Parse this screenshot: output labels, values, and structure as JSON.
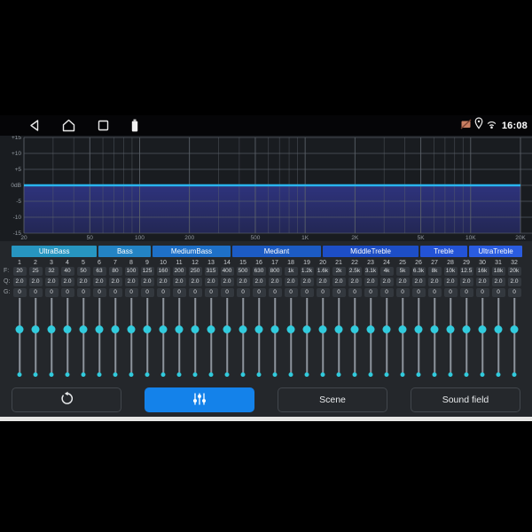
{
  "status_bar": {
    "time": "16:08"
  },
  "chart": {
    "type": "line",
    "title": "equalizer-frequency-response",
    "curve_db": 0,
    "x_scale": "log",
    "x_range_hz": [
      20,
      20000
    ],
    "y_range_db": [
      -15,
      15
    ],
    "y_ticks": [
      {
        "db": 15,
        "label": "+15"
      },
      {
        "db": 10,
        "label": "+10"
      },
      {
        "db": 5,
        "label": "+5"
      },
      {
        "db": 0,
        "label": "0dB"
      },
      {
        "db": -5,
        "label": "-5"
      },
      {
        "db": -10,
        "label": "-10"
      },
      {
        "db": -15,
        "label": "-15"
      }
    ],
    "x_ticks": [
      {
        "f": 20,
        "label": "20"
      },
      {
        "f": 50,
        "label": "50"
      },
      {
        "f": 100,
        "label": "100"
      },
      {
        "f": 200,
        "label": "200"
      },
      {
        "f": 500,
        "label": "500"
      },
      {
        "f": 1000,
        "label": "1K"
      },
      {
        "f": 2000,
        "label": "2K"
      },
      {
        "f": 5000,
        "label": "5K"
      },
      {
        "f": 10000,
        "label": "10K"
      },
      {
        "f": 20000,
        "label": "20K"
      }
    ],
    "minor_ticks": [
      30,
      40,
      60,
      70,
      80,
      90,
      300,
      400,
      600,
      700,
      800,
      900,
      3000,
      4000,
      6000,
      7000,
      8000,
      9000
    ],
    "line_color": "#29b4ee",
    "fill_top_color": "#2e337c",
    "fill_bottom_color": "#232754",
    "grid_color": "#5d636b",
    "label_color": "#939aa2"
  },
  "groups": [
    {
      "label": "UltraBass",
      "bands": 6,
      "color": "#2795c0"
    },
    {
      "label": "Bass",
      "bands": 4,
      "color": "#2383c4"
    },
    {
      "label": "MediumBass",
      "bands": 4,
      "color": "#1e70c8"
    },
    {
      "label": "Mediant",
      "bands": 7,
      "color": "#1c5bc4"
    },
    {
      "label": "MiddleTreble",
      "bands": 6,
      "color": "#1d4ec6"
    },
    {
      "label": "Treble",
      "bands": 3,
      "color": "#2353d6"
    },
    {
      "label": "UltraTreble",
      "bands": 2,
      "color": "#2a5ce0"
    }
  ],
  "bands": {
    "numbers": [
      1,
      2,
      3,
      4,
      5,
      6,
      7,
      8,
      9,
      10,
      11,
      12,
      13,
      14,
      15,
      16,
      17,
      18,
      19,
      20,
      21,
      22,
      23,
      24,
      25,
      26,
      27,
      28,
      29,
      30,
      31,
      32
    ],
    "row_labels": {
      "f": "F:",
      "q": "Q:",
      "g": "G:"
    },
    "f": [
      "20",
      "25",
      "32",
      "40",
      "50",
      "63",
      "80",
      "100",
      "125",
      "160",
      "200",
      "250",
      "315",
      "400",
      "500",
      "630",
      "800",
      "1k",
      "1.2k",
      "1.6k",
      "2k",
      "2.5k",
      "3.1k",
      "4k",
      "5k",
      "6.3k",
      "8k",
      "10k",
      "12.5",
      "16k",
      "18k",
      "20k"
    ],
    "q": [
      "2.0",
      "2.0",
      "2.0",
      "2.0",
      "2.0",
      "2.0",
      "2.0",
      "2.0",
      "2.0",
      "2.0",
      "2.0",
      "2.0",
      "2.0",
      "2.0",
      "2.0",
      "2.0",
      "2.0",
      "2.0",
      "2.0",
      "2.0",
      "2.0",
      "2.0",
      "2.0",
      "2.0",
      "2.0",
      "2.0",
      "2.0",
      "2.0",
      "2.0",
      "2.0",
      "2.0",
      "2.0"
    ],
    "g": [
      "0",
      "0",
      "0",
      "0",
      "0",
      "0",
      "0",
      "0",
      "0",
      "0",
      "0",
      "0",
      "0",
      "0",
      "0",
      "0",
      "0",
      "0",
      "0",
      "0",
      "0",
      "0",
      "0",
      "0",
      "0",
      "0",
      "0",
      "0",
      "0",
      "0",
      "0",
      "0"
    ],
    "slider_gain_db": 0,
    "dot_color": "#31cbdd"
  },
  "toolbar": {
    "scene_label": "Scene",
    "sound_field_label": "Sound field",
    "active_color": "#1482ea"
  }
}
